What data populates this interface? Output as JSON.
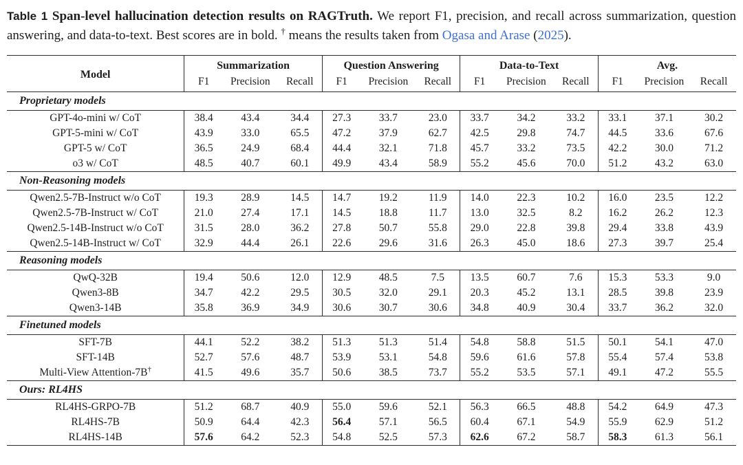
{
  "caption": {
    "label": "Table 1",
    "title": "Span-level hallucination detection results on RAGTruth.",
    "body_1": "We report F1, precision, and recall across summarization, question answering, and data-to-text. Best scores are in bold.",
    "dagger": "†",
    "body_2": "means the results taken from",
    "cite_authors": "Ogasa and Arase",
    "paren_open": "(",
    "cite_year": "2025",
    "paren_close": ")."
  },
  "table": {
    "model_header": "Model",
    "subheaders": [
      "F1",
      "Precision",
      "Recall"
    ],
    "groups": [
      {
        "label": "Summarization"
      },
      {
        "label": "Question Answering"
      },
      {
        "label": "Data-to-Text"
      },
      {
        "label": "Avg."
      }
    ],
    "sections": [
      {
        "header": "Proprietary models",
        "rows": [
          {
            "model": "GPT-4o-mini w/ CoT",
            "values": [
              "38.4",
              "43.4",
              "34.4",
              "27.3",
              "33.7",
              "23.0",
              "33.7",
              "34.2",
              "33.2",
              "33.1",
              "37.1",
              "30.2"
            ],
            "bold": []
          },
          {
            "model": "GPT-5-mini w/ CoT",
            "values": [
              "43.9",
              "33.0",
              "65.5",
              "47.2",
              "37.9",
              "62.7",
              "42.5",
              "29.8",
              "74.7",
              "44.5",
              "33.6",
              "67.6"
            ],
            "bold": []
          },
          {
            "model": "GPT-5 w/ CoT",
            "values": [
              "36.5",
              "24.9",
              "68.4",
              "44.4",
              "32.1",
              "71.8",
              "45.7",
              "33.2",
              "73.5",
              "42.2",
              "30.0",
              "71.2"
            ],
            "bold": []
          },
          {
            "model": "o3 w/ CoT",
            "values": [
              "48.5",
              "40.7",
              "60.1",
              "49.9",
              "43.4",
              "58.9",
              "55.2",
              "45.6",
              "70.0",
              "51.2",
              "43.2",
              "63.0"
            ],
            "bold": []
          }
        ]
      },
      {
        "header": "Non-Reasoning models",
        "rows": [
          {
            "model": "Qwen2.5-7B-Instruct w/o CoT",
            "values": [
              "19.3",
              "28.9",
              "14.5",
              "14.7",
              "19.2",
              "11.9",
              "14.0",
              "22.3",
              "10.2",
              "16.0",
              "23.5",
              "12.2"
            ],
            "bold": []
          },
          {
            "model": "Qwen2.5-7B-Instruct w/ CoT",
            "values": [
              "21.0",
              "27.4",
              "17.1",
              "14.5",
              "18.8",
              "11.7",
              "13.0",
              "32.5",
              "8.2",
              "16.2",
              "26.2",
              "12.3"
            ],
            "bold": []
          },
          {
            "model": "Qwen2.5-14B-Instruct w/o CoT",
            "values": [
              "31.5",
              "28.0",
              "36.2",
              "27.8",
              "50.7",
              "55.8",
              "29.0",
              "22.8",
              "39.8",
              "29.4",
              "33.8",
              "43.9"
            ],
            "bold": []
          },
          {
            "model": "Qwen2.5-14B-Instruct w/ CoT",
            "values": [
              "32.9",
              "44.4",
              "26.1",
              "22.6",
              "29.6",
              "31.6",
              "26.3",
              "45.0",
              "18.6",
              "27.3",
              "39.7",
              "25.4"
            ],
            "bold": []
          }
        ]
      },
      {
        "header": "Reasoning models",
        "rows": [
          {
            "model": "QwQ-32B",
            "values": [
              "19.4",
              "50.6",
              "12.0",
              "12.9",
              "48.5",
              "7.5",
              "13.5",
              "60.7",
              "7.6",
              "15.3",
              "53.3",
              "9.0"
            ],
            "bold": []
          },
          {
            "model": "Qwen3-8B",
            "values": [
              "34.7",
              "42.2",
              "29.5",
              "30.5",
              "32.0",
              "29.1",
              "20.3",
              "45.2",
              "13.1",
              "28.5",
              "39.8",
              "23.9"
            ],
            "bold": []
          },
          {
            "model": "Qwen3-14B",
            "values": [
              "35.8",
              "36.9",
              "34.9",
              "30.6",
              "30.7",
              "30.6",
              "34.8",
              "40.9",
              "30.4",
              "33.7",
              "36.2",
              "32.0"
            ],
            "bold": []
          }
        ]
      },
      {
        "header": "Finetuned models",
        "rows": [
          {
            "model": "SFT-7B",
            "values": [
              "44.1",
              "52.2",
              "38.2",
              "51.3",
              "51.3",
              "51.4",
              "54.8",
              "58.8",
              "51.5",
              "50.1",
              "54.1",
              "47.0"
            ],
            "bold": []
          },
          {
            "model": "SFT-14B",
            "values": [
              "52.7",
              "57.6",
              "48.7",
              "53.9",
              "53.1",
              "54.8",
              "59.6",
              "61.6",
              "57.8",
              "55.4",
              "57.4",
              "53.8"
            ],
            "bold": []
          },
          {
            "model": "Multi-View Attention-7B",
            "sup": "†",
            "values": [
              "41.5",
              "49.6",
              "35.7",
              "50.6",
              "38.5",
              "73.7",
              "55.2",
              "53.5",
              "57.1",
              "49.1",
              "47.2",
              "55.5"
            ],
            "bold": []
          }
        ]
      },
      {
        "header": "Ours: RL4HS",
        "rows": [
          {
            "model": "RL4HS-GRPO-7B",
            "values": [
              "51.2",
              "68.7",
              "40.9",
              "55.0",
              "59.6",
              "52.1",
              "56.3",
              "66.5",
              "48.8",
              "54.2",
              "64.9",
              "47.3"
            ],
            "bold": []
          },
          {
            "model": "RL4HS-7B",
            "values": [
              "50.9",
              "64.4",
              "42.3",
              "56.4",
              "57.1",
              "56.5",
              "60.4",
              "67.1",
              "54.9",
              "55.9",
              "62.9",
              "51.2"
            ],
            "bold": [
              3
            ]
          },
          {
            "model": "RL4HS-14B",
            "values": [
              "57.6",
              "64.2",
              "52.3",
              "54.8",
              "52.5",
              "57.3",
              "62.6",
              "67.2",
              "58.7",
              "58.3",
              "61.3",
              "56.1"
            ],
            "bold": [
              0,
              6,
              9
            ]
          }
        ]
      }
    ]
  },
  "colors": {
    "link_blue": "#3d6fd6",
    "text": "#1e1e1e",
    "rule": "#2b2b2b",
    "background": "#ffffff"
  }
}
